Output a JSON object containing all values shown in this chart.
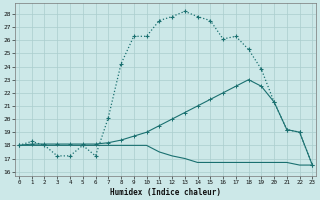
{
  "xlabel": "Humidex (Indice chaleur)",
  "bg_color": "#cce8e8",
  "grid_color": "#aacece",
  "line_color": "#1a7070",
  "x_ticks": [
    0,
    1,
    2,
    3,
    4,
    5,
    6,
    7,
    8,
    9,
    10,
    11,
    12,
    13,
    14,
    15,
    16,
    17,
    18,
    19,
    20,
    21,
    22,
    23
  ],
  "y_ticks": [
    16,
    17,
    18,
    19,
    20,
    21,
    22,
    23,
    24,
    25,
    26,
    27,
    28
  ],
  "xlim": [
    -0.3,
    23.3
  ],
  "ylim": [
    15.7,
    28.8
  ],
  "series1_x": [
    0,
    1,
    2,
    3,
    4,
    5,
    6,
    7,
    8,
    9,
    10,
    11,
    12,
    13,
    14,
    15,
    16,
    17,
    18,
    19,
    20,
    21,
    22,
    23
  ],
  "series1_y": [
    18.0,
    18.3,
    18.0,
    17.2,
    17.2,
    18.0,
    17.2,
    20.1,
    24.2,
    26.3,
    26.3,
    27.5,
    27.8,
    28.2,
    27.8,
    27.5,
    26.1,
    26.3,
    25.3,
    23.8,
    21.3,
    19.2,
    19.0,
    16.5
  ],
  "series2_x": [
    0,
    1,
    2,
    3,
    4,
    5,
    6,
    7,
    8,
    9,
    10,
    11,
    12,
    13,
    14,
    15,
    16,
    17,
    18,
    19,
    20,
    21,
    22,
    23
  ],
  "series2_y": [
    18.0,
    18.1,
    18.1,
    18.1,
    18.1,
    18.1,
    18.1,
    18.2,
    18.4,
    18.7,
    19.0,
    19.5,
    20.0,
    20.5,
    21.0,
    21.5,
    22.0,
    22.5,
    23.0,
    22.5,
    21.3,
    19.2,
    19.0,
    16.5
  ],
  "series3_x": [
    0,
    1,
    2,
    3,
    4,
    5,
    6,
    7,
    8,
    9,
    10,
    11,
    12,
    13,
    14,
    15,
    16,
    17,
    18,
    19,
    20,
    21,
    22,
    23
  ],
  "series3_y": [
    18.0,
    18.0,
    18.0,
    18.0,
    18.0,
    18.0,
    18.0,
    18.0,
    18.0,
    18.0,
    18.0,
    17.5,
    17.2,
    17.0,
    16.7,
    16.7,
    16.7,
    16.7,
    16.7,
    16.7,
    16.7,
    16.7,
    16.5,
    16.5
  ]
}
